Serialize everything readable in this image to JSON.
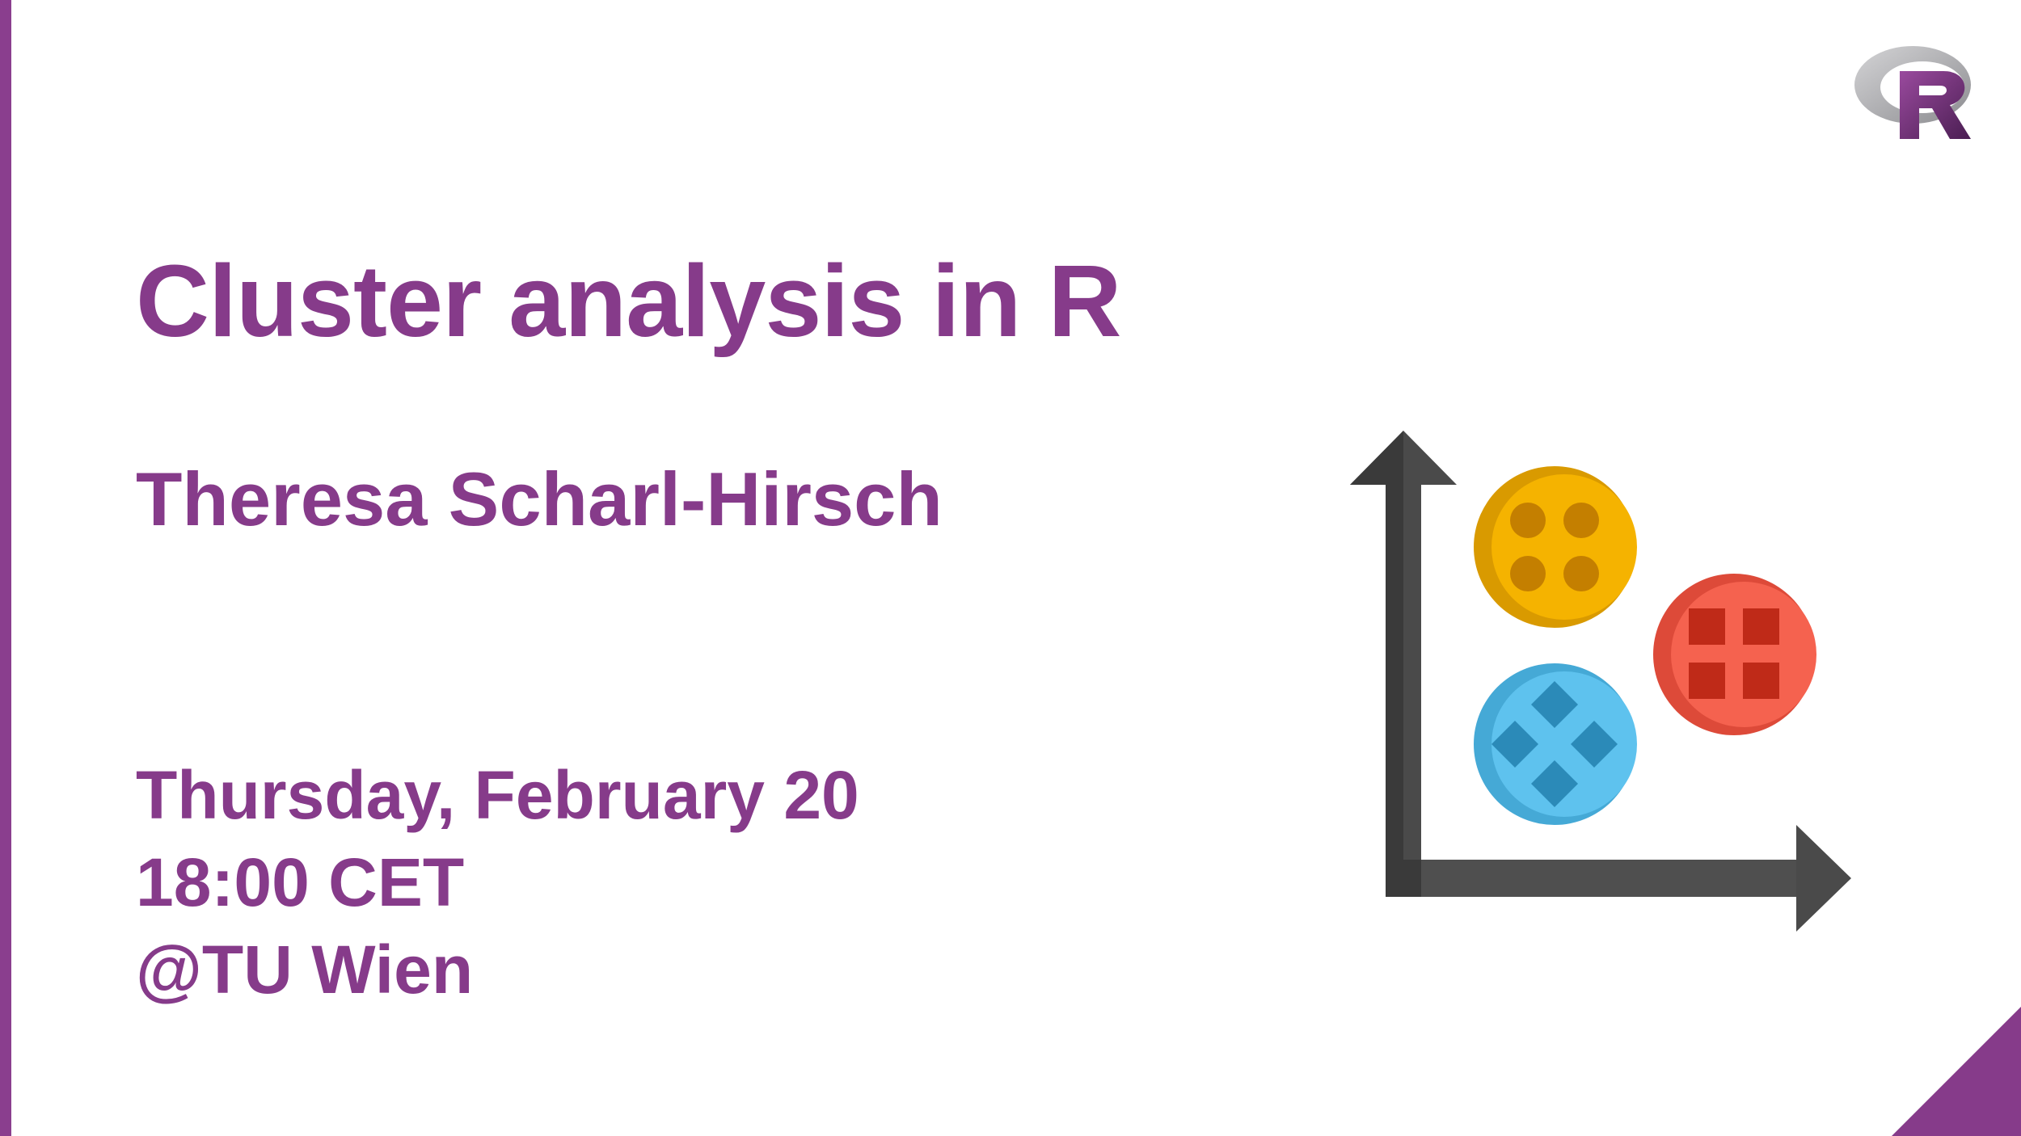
{
  "slide": {
    "title": "Cluster analysis in R",
    "presenter": "Theresa Scharl-Hirsch",
    "date": "Thursday, February 20",
    "time": "18:00 CET",
    "location": "@TU Wien"
  },
  "logo": {
    "letter": "R",
    "icon": "r-logo-icon"
  },
  "illustration": {
    "icon": "cluster-scatter-icon",
    "clusters": [
      {
        "name": "yellow-cluster",
        "color": "#f5b300",
        "marker": "dots"
      },
      {
        "name": "red-cluster",
        "color": "#f5624f",
        "marker": "squares"
      },
      {
        "name": "blue-cluster",
        "color": "#5ec2ee",
        "marker": "diamonds"
      }
    ]
  },
  "colors": {
    "accent": "#863b8a",
    "axis": "#4a4a4a"
  }
}
